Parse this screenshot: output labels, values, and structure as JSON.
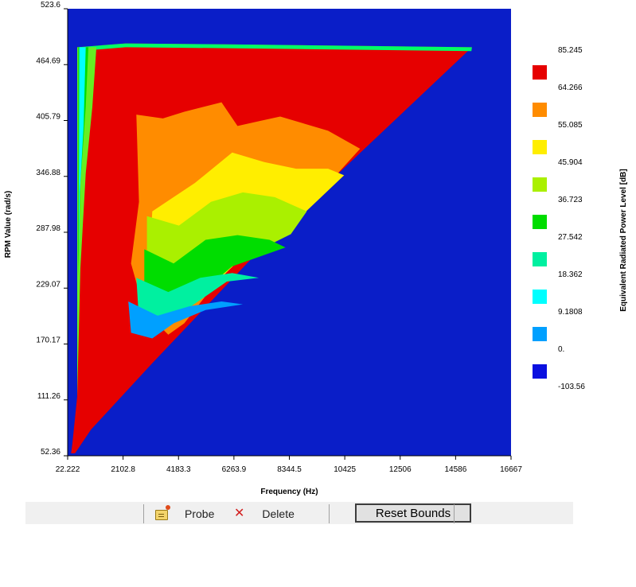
{
  "chart_data": {
    "type": "heatmap",
    "xlabel": "Frequency (Hz)",
    "ylabel": "RPM Value (rad/s)",
    "x_ticks": [
      "22.222",
      "2102.8",
      "4183.3",
      "6263.9",
      "8344.5",
      "10425",
      "12506",
      "14586",
      "16667"
    ],
    "y_ticks": [
      "52.36",
      "111.26",
      "170.17",
      "229.07",
      "287.98",
      "346.88",
      "405.79",
      "464.69",
      "523.6"
    ],
    "xlim": [
      22.222,
      16667
    ],
    "ylim": [
      52.36,
      523.6
    ],
    "background_color": "#0a1ec8",
    "colorbar": {
      "title": "Equivalent Radiated Power Level [dB]",
      "levels": [
        "85.245",
        "64.266",
        "55.085",
        "45.904",
        "36.723",
        "27.542",
        "18.362",
        "9.1808",
        "0.",
        "-103.56"
      ],
      "colors": [
        "#e60000",
        "#ff8c00",
        "#ffee00",
        "#aaf000",
        "#00dd00",
        "#00f0a0",
        "#00ffff",
        "#00a0ff",
        "#0a10e0"
      ]
    },
    "contour_bands": [
      {
        "level": "outer",
        "color": "#e60000",
        "points": [
          [
            400,
            483
          ],
          [
            2200,
            487
          ],
          [
            6000,
            486
          ],
          [
            15200,
            483
          ],
          [
            8000,
            292
          ],
          [
            3200,
            150
          ],
          [
            900,
            80
          ],
          [
            300,
            55
          ],
          [
            150,
            55
          ],
          [
            200,
            65
          ],
          [
            380,
            115
          ],
          [
            400,
            483
          ]
        ]
      },
      {
        "level": "b1",
        "color": "#ff8c00",
        "points": [
          [
            2600,
            412
          ],
          [
            3600,
            408
          ],
          [
            4400,
            415
          ],
          [
            5800,
            425
          ],
          [
            6400,
            400
          ],
          [
            7200,
            405
          ],
          [
            8000,
            410
          ],
          [
            9800,
            395
          ],
          [
            11000,
            376
          ],
          [
            8800,
            308
          ],
          [
            6800,
            270
          ],
          [
            5400,
            228
          ],
          [
            4400,
            192
          ],
          [
            3800,
            180
          ],
          [
            2900,
            205
          ],
          [
            2400,
            255
          ],
          [
            2700,
            320
          ],
          [
            2600,
            412
          ]
        ]
      },
      {
        "level": "b2",
        "color": "#ffee00",
        "points": [
          [
            3200,
            310
          ],
          [
            4800,
            340
          ],
          [
            6200,
            372
          ],
          [
            7400,
            362
          ],
          [
            8600,
            355
          ],
          [
            9800,
            355
          ],
          [
            10400,
            348
          ],
          [
            8600,
            300
          ],
          [
            6600,
            262
          ],
          [
            5000,
            220
          ],
          [
            3800,
            190
          ],
          [
            3000,
            210
          ],
          [
            3200,
            310
          ]
        ]
      },
      {
        "level": "b3",
        "color": "#aaf000",
        "points": [
          [
            3000,
            305
          ],
          [
            4200,
            295
          ],
          [
            5400,
            320
          ],
          [
            6600,
            330
          ],
          [
            7800,
            325
          ],
          [
            9000,
            310
          ],
          [
            8400,
            286
          ],
          [
            6400,
            258
          ],
          [
            4800,
            218
          ],
          [
            3700,
            192
          ],
          [
            3000,
            220
          ],
          [
            3000,
            305
          ]
        ]
      },
      {
        "level": "b4",
        "color": "#00dd00",
        "points": [
          [
            2900,
            270
          ],
          [
            4000,
            255
          ],
          [
            5200,
            280
          ],
          [
            6400,
            285
          ],
          [
            7600,
            280
          ],
          [
            8200,
            272
          ],
          [
            6200,
            252
          ],
          [
            4600,
            214
          ],
          [
            3600,
            192
          ],
          [
            2900,
            215
          ],
          [
            2900,
            270
          ]
        ]
      },
      {
        "level": "b5",
        "color": "#00f0a0",
        "points": [
          [
            2600,
            240
          ],
          [
            3800,
            225
          ],
          [
            5000,
            240
          ],
          [
            6200,
            245
          ],
          [
            7200,
            240
          ],
          [
            6000,
            236
          ],
          [
            4400,
            205
          ],
          [
            3500,
            182
          ],
          [
            2700,
            195
          ],
          [
            2600,
            240
          ]
        ]
      },
      {
        "level": "b6",
        "color": "#00a0ff",
        "points": [
          [
            2300,
            215
          ],
          [
            3400,
            200
          ],
          [
            4600,
            210
          ],
          [
            5800,
            215
          ],
          [
            6600,
            212
          ],
          [
            5200,
            206
          ],
          [
            4000,
            192
          ],
          [
            3200,
            176
          ],
          [
            2400,
            182
          ],
          [
            2300,
            215
          ]
        ]
      },
      {
        "level": "edge-green",
        "color": "#00ff66",
        "points": [
          [
            400,
            483
          ],
          [
            2200,
            487
          ],
          [
            6000,
            486
          ],
          [
            15200,
            483
          ],
          [
            15180,
            479
          ],
          [
            6000,
            482
          ],
          [
            2200,
            483
          ],
          [
            420,
            479
          ]
        ]
      },
      {
        "level": "left-lightgreen",
        "color": "#66ee22",
        "points": [
          [
            380,
            483
          ],
          [
            1100,
            483
          ],
          [
            950,
            420
          ],
          [
            700,
            350
          ],
          [
            500,
            250
          ],
          [
            380,
            115
          ]
        ]
      },
      {
        "level": "left-green",
        "color": "#00dd00",
        "points": [
          [
            420,
            483
          ],
          [
            800,
            483
          ],
          [
            700,
            420
          ],
          [
            500,
            340
          ],
          [
            420,
            240
          ]
        ]
      },
      {
        "level": "left-cyan",
        "color": "#00ffff",
        "points": [
          [
            460,
            483
          ],
          [
            700,
            483
          ],
          [
            620,
            400
          ],
          [
            480,
            330
          ],
          [
            440,
            260
          ]
        ]
      }
    ]
  },
  "toolbar": {
    "probe_label": "Probe",
    "delete_label": "Delete",
    "reset_label": "Reset Bounds"
  }
}
